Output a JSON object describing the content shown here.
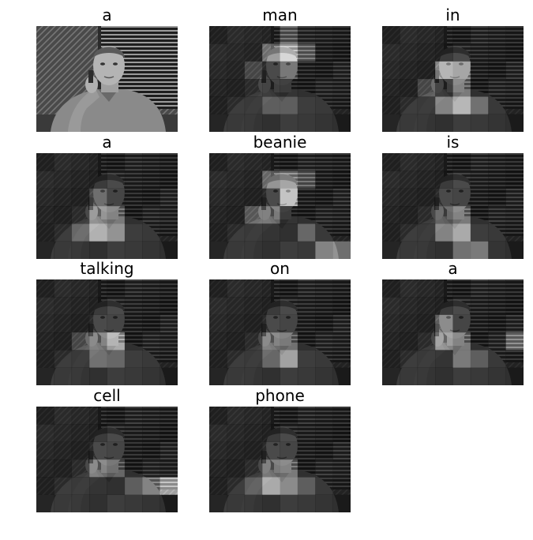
{
  "words": [
    "a",
    "man",
    "in",
    "a",
    "beanie",
    "is",
    "talking",
    "on",
    "a",
    "cell",
    "phone"
  ]
}
